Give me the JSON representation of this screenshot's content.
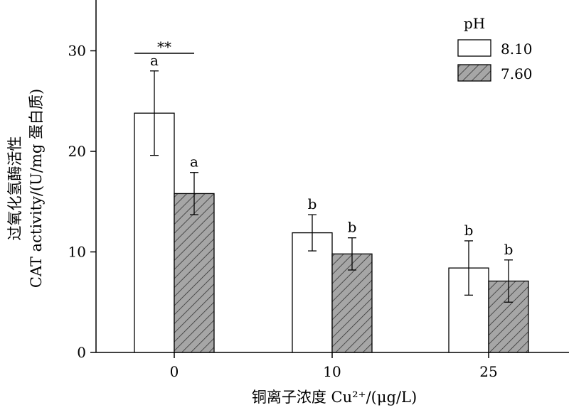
{
  "chart_data": {
    "type": "bar",
    "categories": [
      "0",
      "10",
      "25"
    ],
    "xlabel": "铜离子浓度 Cu²⁺/(μg/L)",
    "ylabel_cn": "过氧化氢酶活性",
    "ylabel_en": "CAT activity/(U/mg 蛋白质)",
    "ylim": [
      0,
      35
    ],
    "yticks": [
      "0",
      "10",
      "20",
      "30"
    ],
    "legend_title": "pH",
    "legend_position": "top-right",
    "grid": false,
    "series": [
      {
        "name": "8.10",
        "fill": "#ffffff",
        "values": [
          23.8,
          11.9,
          8.4
        ],
        "errors": [
          4.2,
          1.8,
          2.7
        ],
        "letters": [
          "a",
          "b",
          "b"
        ]
      },
      {
        "name": "7.60",
        "fill": "#a6a6a6",
        "hatched": true,
        "values": [
          15.8,
          9.8,
          7.1
        ],
        "errors": [
          2.1,
          1.6,
          2.1
        ],
        "letters": [
          "a",
          "b",
          "b"
        ]
      }
    ],
    "significance": {
      "label": "**",
      "category_index": 0
    }
  }
}
